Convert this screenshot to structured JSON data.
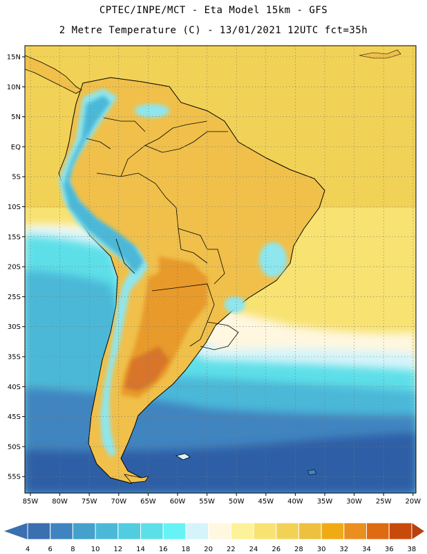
{
  "title_line1": "CPTEC/INPE/MCT -  Eta Model 15km - GFS",
  "title_line2": "2 Metre Temperature (C) - 13/01/2021 12UTC fct=35h",
  "lat_labels": [
    "15N",
    "10N",
    "5N",
    "EQ",
    "5S",
    "10S",
    "15S",
    "20S",
    "25S",
    "30S",
    "35S",
    "40S",
    "45S",
    "50S",
    "55S"
  ],
  "lon_labels": [
    "85W",
    "80W",
    "75W",
    "70W",
    "65W",
    "60W",
    "55W",
    "50W",
    "45W",
    "40W",
    "35W",
    "30W",
    "25W",
    "20W"
  ],
  "colorbar": {
    "values": [
      "4",
      "6",
      "8",
      "10",
      "12",
      "14",
      "16",
      "18",
      "20",
      "22",
      "24",
      "26",
      "28",
      "30",
      "32",
      "34",
      "36",
      "38"
    ],
    "colors": [
      "#3a6fb0",
      "#3f84c0",
      "#43a1cc",
      "#4cb8d8",
      "#52cde0",
      "#5ddfe8",
      "#66f3f5",
      "#d4f4fa",
      "#fff7e0",
      "#fdf29a",
      "#f8e272",
      "#f2d256",
      "#eec040",
      "#f0aa14",
      "#ea8e20",
      "#de6a12",
      "#c84a0a"
    ],
    "left_arrow_color": "#3a6fb0",
    "right_arrow_color": "#b8400c"
  },
  "colors": {
    "ocean_far_south": "#2f5fa6",
    "ocean_south": "#3f84c0",
    "ocean_mid": "#4cb8d8",
    "ocean_cyan": "#5ddfe8",
    "ocean_light": "#d4f4fa",
    "ocean_cream": "#fff7e0",
    "ocean_yellow": "#f8e272",
    "ocean_warm": "#f2d256",
    "land_main": "#f0c04a",
    "land_hot": "#e89a2a",
    "land_hottest": "#d8742a",
    "andes_cold": "#4cb8d8",
    "andes_cool": "#8ee6ee"
  }
}
